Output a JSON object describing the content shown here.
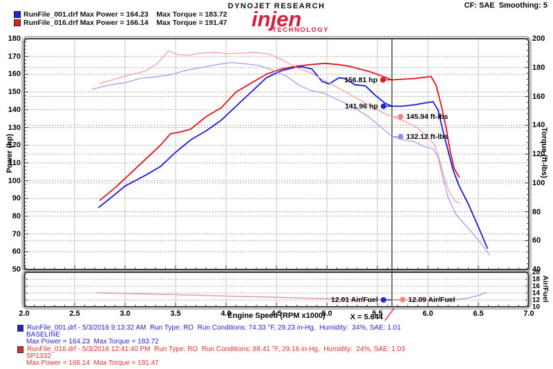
{
  "header": {
    "legend": [
      {
        "text": "RunFile_001.drf Max Power = 164.23    Max Torque = 183.72",
        "color": "#2222dd"
      },
      {
        "text": "RunFile_016.drf Max Power = 166.14    Max Torque = 191.47",
        "color": "#dd2222"
      }
    ],
    "brand_top": "DYNOJET RESEARCH",
    "brand_main": "injen",
    "brand_sub": "TECHNOLOGY",
    "cf_smoothing": "CF: SAE  Smoothing: 5"
  },
  "chart_data": {
    "type": "line",
    "axes": {
      "x": {
        "title": "Engine Speed (RPM x1000)",
        "min": 2,
        "max": 7,
        "labels": [
          "2.0",
          "2.5",
          "3.0",
          "3.5",
          "4.0",
          "4.5",
          "5.0",
          "5.5",
          "6.0",
          "6.5",
          "7.0"
        ]
      },
      "power": {
        "title": "Power (hp)",
        "min": 50,
        "max": 180,
        "labels": [
          180,
          170,
          160,
          150,
          140,
          130,
          120,
          110,
          100,
          90,
          80,
          70,
          60,
          50
        ]
      },
      "torque": {
        "title": "Torque (ft-lbs)",
        "min": 40,
        "max": 200,
        "labels": [
          200,
          180,
          160,
          140,
          120,
          100,
          80,
          60,
          40
        ]
      },
      "af": {
        "title": "Air/Fuel",
        "min": 10,
        "max": 20,
        "labels": [
          20,
          18,
          16,
          14,
          12,
          10
        ]
      }
    },
    "series": [
      {
        "name": "RunFile_001 Power",
        "axis": "hp",
        "color": "#1616d8",
        "width": 1.8,
        "points": [
          [
            2.74,
            85
          ],
          [
            2.85,
            90
          ],
          [
            3.0,
            97
          ],
          [
            3.1,
            100
          ],
          [
            3.2,
            103
          ],
          [
            3.35,
            108
          ],
          [
            3.5,
            116
          ],
          [
            3.65,
            123
          ],
          [
            3.8,
            128
          ],
          [
            3.95,
            134
          ],
          [
            4.1,
            142
          ],
          [
            4.25,
            150
          ],
          [
            4.4,
            158
          ],
          [
            4.55,
            162
          ],
          [
            4.68,
            163.8
          ],
          [
            4.75,
            164.2
          ],
          [
            4.85,
            163
          ],
          [
            4.95,
            156
          ],
          [
            5.02,
            154.5
          ],
          [
            5.12,
            158
          ],
          [
            5.18,
            157.5
          ],
          [
            5.28,
            154
          ],
          [
            5.38,
            153.5
          ],
          [
            5.48,
            148
          ],
          [
            5.58,
            143.5
          ],
          [
            5.644,
            142
          ],
          [
            5.75,
            142
          ],
          [
            5.87,
            142.8
          ],
          [
            5.97,
            143.8
          ],
          [
            6.05,
            144.5
          ],
          [
            6.1,
            140
          ],
          [
            6.15,
            128
          ],
          [
            6.2,
            117
          ],
          [
            6.25,
            106
          ],
          [
            6.31,
            97
          ],
          [
            6.4,
            87
          ],
          [
            6.5,
            74
          ],
          [
            6.59,
            62
          ]
        ]
      },
      {
        "name": "RunFile_016 Power",
        "axis": "hp",
        "color": "#e31219",
        "width": 1.8,
        "points": [
          [
            2.75,
            89
          ],
          [
            2.9,
            96
          ],
          [
            3.05,
            104
          ],
          [
            3.2,
            112
          ],
          [
            3.35,
            120
          ],
          [
            3.45,
            126.5
          ],
          [
            3.55,
            127.5
          ],
          [
            3.65,
            129
          ],
          [
            3.8,
            136
          ],
          [
            3.95,
            141
          ],
          [
            4.1,
            150
          ],
          [
            4.25,
            155
          ],
          [
            4.4,
            160
          ],
          [
            4.55,
            163
          ],
          [
            4.7,
            164.5
          ],
          [
            4.85,
            165.5
          ],
          [
            4.98,
            166.1
          ],
          [
            5.1,
            165.5
          ],
          [
            5.22,
            164.5
          ],
          [
            5.32,
            163
          ],
          [
            5.42,
            161.5
          ],
          [
            5.52,
            159.5
          ],
          [
            5.644,
            156.8
          ],
          [
            5.75,
            157.2
          ],
          [
            5.87,
            157.6
          ],
          [
            5.97,
            158.3
          ],
          [
            6.03,
            158.8
          ],
          [
            6.08,
            154
          ],
          [
            6.13,
            143
          ],
          [
            6.18,
            130
          ],
          [
            6.22,
            117
          ],
          [
            6.26,
            107
          ],
          [
            6.31,
            102
          ]
        ]
      },
      {
        "name": "RunFile_001 Torque",
        "axis": "tq",
        "color": "#9d9df0",
        "width": 1.3,
        "points": [
          [
            2.67,
            165
          ],
          [
            2.85,
            168
          ],
          [
            3.0,
            169.5
          ],
          [
            3.15,
            172.5
          ],
          [
            3.3,
            173.5
          ],
          [
            3.45,
            175
          ],
          [
            3.6,
            178
          ],
          [
            3.75,
            180
          ],
          [
            3.9,
            182
          ],
          [
            4.05,
            183.5
          ],
          [
            4.2,
            182.5
          ],
          [
            4.32,
            181.5
          ],
          [
            4.45,
            178.5
          ],
          [
            4.6,
            174
          ],
          [
            4.72,
            168
          ],
          [
            4.84,
            164
          ],
          [
            4.96,
            162.5
          ],
          [
            5.1,
            158
          ],
          [
            5.25,
            153
          ],
          [
            5.4,
            146.5
          ],
          [
            5.55,
            138
          ],
          [
            5.644,
            132.1
          ],
          [
            5.75,
            130
          ],
          [
            5.87,
            128.5
          ],
          [
            5.97,
            125
          ],
          [
            6.05,
            123.8
          ],
          [
            6.1,
            118
          ],
          [
            6.14,
            106
          ],
          [
            6.2,
            90
          ],
          [
            6.28,
            78
          ],
          [
            6.42,
            67
          ],
          [
            6.54,
            57
          ],
          [
            6.61,
            50
          ]
        ]
      },
      {
        "name": "RunFile_016 Torque",
        "axis": "tq",
        "color": "#f29d9d",
        "width": 1.3,
        "points": [
          [
            2.75,
            169
          ],
          [
            2.9,
            172
          ],
          [
            3.05,
            175
          ],
          [
            3.2,
            177.5
          ],
          [
            3.32,
            183
          ],
          [
            3.43,
            191.5
          ],
          [
            3.52,
            189
          ],
          [
            3.62,
            188.5
          ],
          [
            3.75,
            190
          ],
          [
            3.9,
            190.5
          ],
          [
            4.02,
            189.5
          ],
          [
            4.15,
            190
          ],
          [
            4.28,
            190.5
          ],
          [
            4.42,
            189.5
          ],
          [
            4.55,
            185.5
          ],
          [
            4.7,
            180
          ],
          [
            4.85,
            176
          ],
          [
            5.0,
            170
          ],
          [
            5.15,
            164.5
          ],
          [
            5.3,
            158.5
          ],
          [
            5.45,
            152.5
          ],
          [
            5.56,
            148.5
          ],
          [
            5.644,
            145.9
          ],
          [
            5.78,
            142.5
          ],
          [
            5.9,
            138
          ],
          [
            6.0,
            132
          ],
          [
            6.07,
            126
          ],
          [
            6.12,
            115
          ],
          [
            6.17,
            102
          ],
          [
            6.21,
            94
          ],
          [
            6.27,
            87.5
          ],
          [
            6.31,
            86
          ]
        ]
      },
      {
        "name": "RunFile_001 Air/Fuel",
        "axis": "af",
        "color": "#9d9df0",
        "width": 1.3,
        "points": [
          [
            2.72,
            14.05
          ],
          [
            3.0,
            13.85
          ],
          [
            3.5,
            13.5
          ],
          [
            4.0,
            13.1
          ],
          [
            4.5,
            12.75
          ],
          [
            4.9,
            12.4
          ],
          [
            5.2,
            12.15
          ],
          [
            5.5,
            12.05
          ],
          [
            5.644,
            12.01
          ],
          [
            5.9,
            11.98
          ],
          [
            6.1,
            12.0
          ],
          [
            6.25,
            12.1
          ],
          [
            6.38,
            12.4
          ],
          [
            6.5,
            13.3
          ],
          [
            6.58,
            14.2
          ]
        ]
      },
      {
        "name": "RunFile_016 Air/Fuel",
        "axis": "af",
        "color": "#f29d9d",
        "width": 1.3,
        "points": [
          [
            2.75,
            14.1
          ],
          [
            3.0,
            13.9
          ],
          [
            3.5,
            13.55
          ],
          [
            4.0,
            13.15
          ],
          [
            4.5,
            12.8
          ],
          [
            4.9,
            12.45
          ],
          [
            5.2,
            12.2
          ],
          [
            5.5,
            12.12
          ],
          [
            5.644,
            12.09
          ],
          [
            5.9,
            12.05
          ],
          [
            6.05,
            12.1
          ],
          [
            6.15,
            12.12
          ],
          [
            6.2,
            12.3
          ],
          [
            6.24,
            12.15
          ],
          [
            6.28,
            12.25
          ]
        ]
      }
    ],
    "cursor": {
      "x": 5.644,
      "label": "X = 5.644"
    },
    "annotations": [
      {
        "text": "156.81 hp",
        "axis": "hp",
        "value": 156.81,
        "dot_rpm": 5.555,
        "side": "left",
        "dot_color": "#ee1111",
        "connector": "#e31219"
      },
      {
        "text": "141.96 hp",
        "axis": "hp",
        "value": 141.96,
        "dot_rpm": 5.56,
        "side": "left",
        "dot_color": "#2222ee",
        "connector": "#222222"
      },
      {
        "text": "145.94 ft-lbs",
        "axis": "tq",
        "value": 145.94,
        "dot_rpm": 5.73,
        "side": "right",
        "dot_color": "#f08484",
        "connector": "#f29d9d"
      },
      {
        "text": "132.12 ft-lbs",
        "axis": "tq",
        "value": 132.12,
        "dot_rpm": 5.73,
        "side": "right",
        "dot_color": "#8c8cf0",
        "connector": "#9d9df0"
      },
      {
        "text": "12.01 Air/Fuel",
        "axis": "af",
        "value": 12.01,
        "dot_rpm": 5.56,
        "side": "left",
        "dot_color": "#2222ee",
        "connector": "#2323cc"
      },
      {
        "text": "12.09 Air/Fuel",
        "axis": "af",
        "value": 12.09,
        "dot_rpm": 5.75,
        "side": "right",
        "dot_color": "#f08484",
        "connector": "#e87878"
      }
    ]
  },
  "footer": {
    "runs": [
      {
        "color": "#2323cc",
        "line1": "RunFile_001.drf - 5/3/2016 9:13:32 AM  Run Type: RO  Run Conditions: 74.33 °F, 29.23 in-Hg,  Humidity:  34%, SAE: 1.01",
        "line2": "BASELINE",
        "line3": "Max Power = 164.23  Max Torque = 183.72"
      },
      {
        "color": "#d93030",
        "line1": "RunFile_016.drf - 5/3/2016 12:41:40 PM  Run Type: RO  Run Conditions: 88.41 °F, 29.16 in-Hg,  Humidity:  24%, SAE: 1.03",
        "line2": "SP1332",
        "line3": "Max Power = 166.14  Max Torque = 191.47"
      }
    ]
  }
}
